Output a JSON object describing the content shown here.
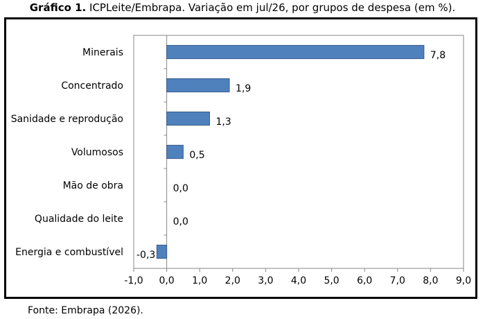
{
  "title": {
    "prefix": "Gráfico 1.",
    "text": " ICPLeite/Embrapa. Variação em jul/26, por grupos de despesa (em %)."
  },
  "source": "Fonte: Embrapa (2026).",
  "colors": {
    "bar": "#4f81bd",
    "bar_border": "#385d8a",
    "axis": "#868686"
  },
  "chart_data": {
    "type": "bar",
    "orientation": "horizontal",
    "categories": [
      "Minerais",
      "Concentrado",
      "Sanidade e reprodução",
      "Volumosos",
      "Mão de obra",
      "Qualidade do leite",
      "Energia e combustível"
    ],
    "values": [
      7.8,
      1.9,
      1.3,
      0.5,
      0.0,
      0.0,
      -0.3
    ],
    "value_labels": [
      "7,8",
      "1,9",
      "1,3",
      "0,5",
      "0,0",
      "0,0",
      "-0,3"
    ],
    "xlim": [
      -1.0,
      9.0
    ],
    "xticks": [
      -1,
      0,
      1,
      2,
      3,
      4,
      5,
      6,
      7,
      8,
      9
    ],
    "xtick_labels": [
      "-1,0",
      "0,0",
      "1,0",
      "2,0",
      "3,0",
      "4,0",
      "5,0",
      "6,0",
      "7,0",
      "8,0",
      "9,0"
    ],
    "grid": false,
    "legend": "none"
  }
}
